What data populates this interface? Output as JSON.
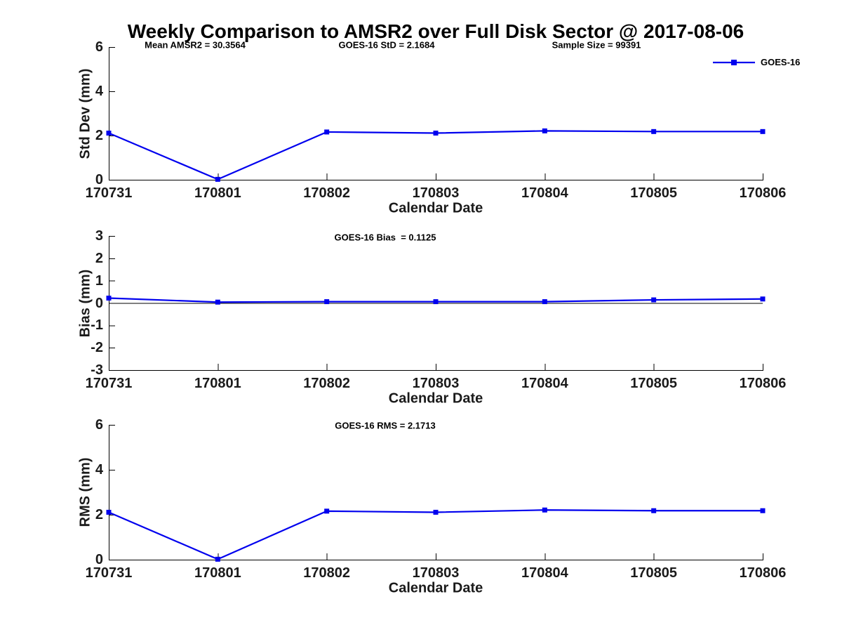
{
  "title": "Weekly Comparison to AMSR2 over Full Disk Sector @ 2017-08-06",
  "legend": {
    "label": "GOES-16"
  },
  "line_color": "#0000EE",
  "axis_color": "#000000",
  "text_color": "#1a1a1a",
  "chart_data": [
    {
      "type": "line",
      "title": "",
      "ylabel": "Std Dev (mm)",
      "xlabel": "Calendar Date",
      "x": [
        "170731",
        "170801",
        "170802",
        "170803",
        "170804",
        "170805",
        "170806"
      ],
      "series": [
        {
          "name": "GOES-16",
          "values": [
            2.11,
            0.02,
            2.16,
            2.11,
            2.21,
            2.18,
            2.18
          ]
        }
      ],
      "ylim": [
        0,
        6
      ],
      "yticks": [
        0,
        2,
        4,
        6
      ],
      "grid": false,
      "zero_line": false,
      "legend_position": "top-right",
      "annotations": [
        "Mean AMSR2 = 30.3564",
        "GOES-16 StD = 2.1684",
        "Sample Size = 99391"
      ]
    },
    {
      "type": "line",
      "title": "",
      "ylabel": "Bias (mm)",
      "xlabel": "Calendar Date",
      "x": [
        "170731",
        "170801",
        "170802",
        "170803",
        "170804",
        "170805",
        "170806"
      ],
      "series": [
        {
          "name": "GOES-16",
          "values": [
            0.22,
            0.04,
            0.06,
            0.06,
            0.06,
            0.14,
            0.18
          ]
        }
      ],
      "ylim": [
        -3,
        3
      ],
      "yticks": [
        -3,
        -2,
        -1,
        0,
        1,
        2,
        3
      ],
      "grid": false,
      "zero_line": true,
      "legend_position": "none",
      "annotations": [
        "GOES-16 Bias  = 0.1125"
      ]
    },
    {
      "type": "line",
      "title": "",
      "ylabel": "RMS (mm)",
      "xlabel": "Calendar Date",
      "x": [
        "170731",
        "170801",
        "170802",
        "170803",
        "170804",
        "170805",
        "170806"
      ],
      "series": [
        {
          "name": "GOES-16",
          "values": [
            2.11,
            0.02,
            2.16,
            2.11,
            2.21,
            2.18,
            2.18
          ]
        }
      ],
      "ylim": [
        0,
        6
      ],
      "yticks": [
        0,
        2,
        4,
        6
      ],
      "grid": false,
      "zero_line": false,
      "legend_position": "none",
      "annotations": [
        "GOES-16 RMS = 2.1713"
      ]
    }
  ]
}
